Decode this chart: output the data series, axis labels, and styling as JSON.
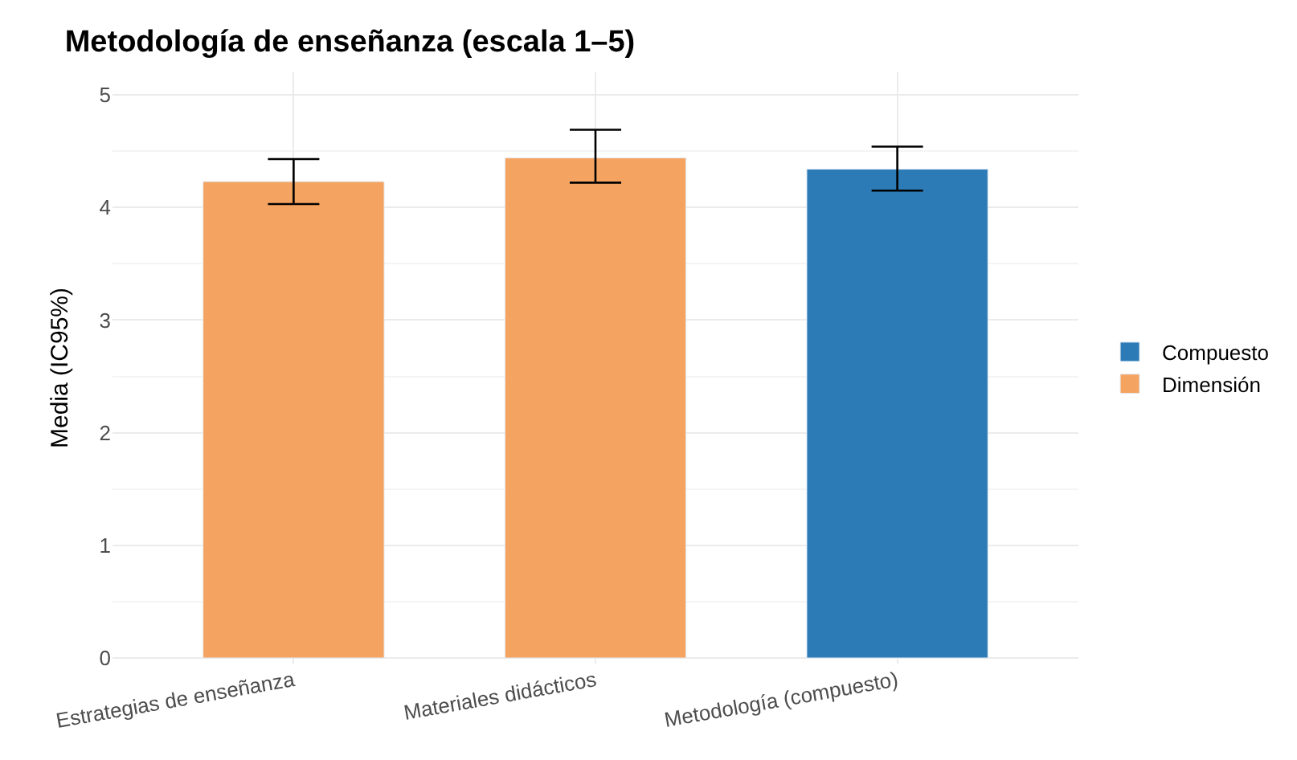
{
  "chart_data": {
    "type": "bar",
    "title": "Metodología de enseñanza (escala 1–5)",
    "ylabel": "Media (IC95%)",
    "categories": [
      "Estrategias de enseñanza",
      "Materiales didácticos",
      "Metodología (compuesto)"
    ],
    "series": [
      {
        "name": "Compuesto",
        "color": "#2c7bb6",
        "values": [
          null,
          null,
          4.34
        ],
        "errors": [
          null,
          null,
          [
            4.15,
            4.54
          ]
        ]
      },
      {
        "name": "Dimensión",
        "color": "#f4a460",
        "values": [
          4.23,
          4.44,
          null
        ],
        "errors": [
          [
            4.03,
            4.43
          ],
          [
            4.22,
            4.69
          ],
          null
        ]
      }
    ],
    "ylim": [
      -0.05,
      5.2
    ],
    "yticks": [
      0,
      1,
      2,
      3,
      4,
      5
    ],
    "grid": true,
    "legend": "right"
  }
}
